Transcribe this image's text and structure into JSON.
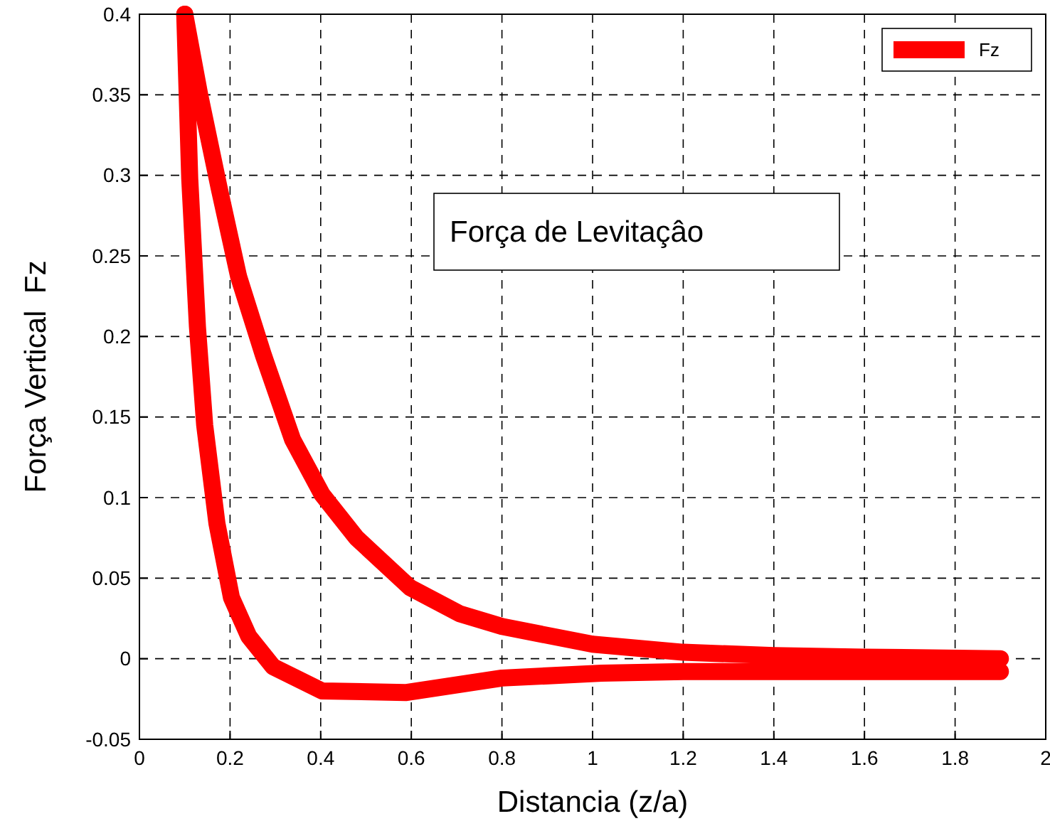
{
  "chart_data": {
    "type": "line",
    "xlabel": "Distancia (z/a)",
    "ylabel": "Força Vertical  Fz",
    "annotations": [
      "Força de Levitaçâo"
    ],
    "series": [
      {
        "name": "Fz",
        "color": "#ff0000",
        "x": [
          0.1,
          0.111,
          0.128,
          0.144,
          0.171,
          0.203,
          0.241,
          0.295,
          0.403,
          0.587,
          0.8,
          1.02,
          1.2,
          1.4,
          1.6,
          1.9
        ],
        "values": [
          0.4,
          0.298,
          0.206,
          0.145,
          0.084,
          0.038,
          0.014,
          -0.005,
          -0.02,
          -0.021,
          -0.012,
          -0.009,
          -0.008,
          -0.008,
          -0.008,
          -0.008
        ]
      },
      {
        "color": "#ff0000",
        "x": [
          0.1,
          0.133,
          0.176,
          0.219,
          0.274,
          0.338,
          0.403,
          0.479,
          0.598,
          0.706,
          0.8,
          1.0,
          1.2,
          1.4,
          1.6,
          1.9
        ],
        "values": [
          0.4,
          0.35,
          0.292,
          0.237,
          0.188,
          0.136,
          0.102,
          0.075,
          0.044,
          0.028,
          0.02,
          0.009,
          0.004,
          0.002,
          0.001,
          0
        ]
      }
    ],
    "xlim": [
      0,
      2
    ],
    "ylim": [
      -0.05,
      0.4
    ],
    "xticks": [
      0,
      0.2,
      0.4,
      0.6,
      0.8,
      1,
      1.2,
      1.4,
      1.6,
      1.8,
      2
    ],
    "yticks": [
      -0.05,
      0,
      0.05,
      0.1,
      0.15,
      0.2,
      0.25,
      0.3,
      0.35,
      0.4
    ],
    "grid": true,
    "legend": "top right",
    "marker": "none",
    "line_style": "solid"
  }
}
